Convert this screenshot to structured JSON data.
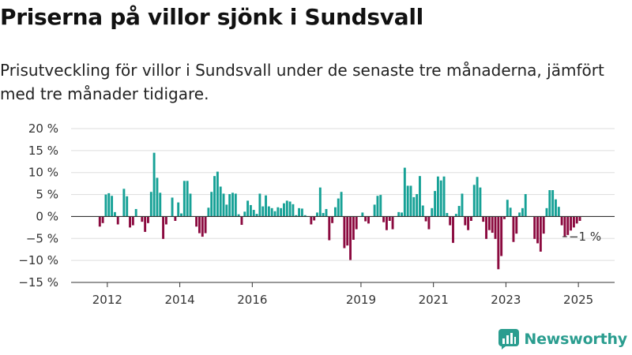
{
  "title": "Priserna på villor sjönk i Sundsvall",
  "subtitle": "Prisutveckling för villor i Sundsvall under de senaste tre månaderna, jämfört med tre månader tidigare.",
  "brand": {
    "name": "Newsworthy",
    "icon": "newsworthy-logo-icon"
  },
  "colors": {
    "positive": "#16a196",
    "negative": "#8b0a3f",
    "grid": "#dddddd",
    "zero_line": "#333333",
    "brand": "#2a9d8f"
  },
  "chart_data": {
    "type": "bar",
    "title": "Priserna på villor sjönk i Sundsvall",
    "xlabel": "",
    "ylabel": "",
    "x_unit": "month",
    "start": "2011-10",
    "end": "2025-03",
    "xlim": [
      "2011-01",
      "2025-12"
    ],
    "ylim": [
      -15,
      20
    ],
    "y_ticks": [
      20,
      15,
      10,
      5,
      0,
      -5,
      -10,
      -15
    ],
    "y_tick_labels": [
      "20 %",
      "15 %",
      "10 %",
      "5 %",
      "0 %",
      "−5 %",
      "−10 %",
      "−15 %"
    ],
    "x_ticks": [
      "2012",
      "2014",
      "2016",
      "2019",
      "2021",
      "2023",
      "2025"
    ],
    "grid": true,
    "legend": "none",
    "color_rule": "positive values teal, negative values crimson",
    "end_label": "−1 %",
    "values": [
      -2.3,
      -1.5,
      5.0,
      5.3,
      4.7,
      1.0,
      -1.8,
      0.0,
      6.3,
      4.6,
      -2.5,
      -2.0,
      1.7,
      0.0,
      -1.2,
      -3.5,
      -1.5,
      5.6,
      14.5,
      8.8,
      5.4,
      -5.1,
      -1.8,
      0.0,
      4.3,
      -1.0,
      3.2,
      0.7,
      8.1,
      8.1,
      5.2,
      0.0,
      -2.3,
      -3.8,
      -4.6,
      -3.8,
      2.0,
      5.6,
      9.2,
      10.2,
      6.8,
      5.2,
      2.7,
      5.1,
      5.4,
      5.2,
      0.5,
      -1.9,
      1.1,
      3.6,
      2.6,
      1.5,
      0.6,
      5.2,
      2.3,
      4.8,
      2.3,
      1.9,
      1.2,
      2.1,
      1.9,
      3.0,
      3.6,
      3.4,
      2.8,
      0.3,
      1.9,
      1.8,
      0.3,
      0.0,
      -1.8,
      -0.9,
      0.9,
      6.6,
      0.8,
      1.7,
      -5.4,
      -1.5,
      2.1,
      4.1,
      5.6,
      -7.2,
      -6.6,
      -9.9,
      -5.3,
      -2.9,
      0.0,
      0.9,
      -1.1,
      -1.6,
      0.0,
      2.7,
      4.7,
      4.9,
      -1.3,
      -3.1,
      -1.0,
      -2.9,
      0.0,
      1.0,
      0.9,
      11.1,
      7.0,
      7.0,
      4.4,
      5.1,
      9.2,
      2.5,
      -1.1,
      -2.9,
      1.9,
      5.8,
      9.1,
      8.2,
      9.1,
      0.8,
      -2.0,
      -6.0,
      0.6,
      2.4,
      5.2,
      -2.0,
      -3.1,
      -1.0,
      7.2,
      9.0,
      6.6,
      -1.2,
      -5.1,
      -3.1,
      -3.7,
      -5.1,
      -12.0,
      -9.0,
      -0.6,
      3.8,
      2.0,
      -5.8,
      -3.9,
      0.9,
      1.9,
      5.1,
      0.0,
      0.0,
      -5.1,
      -6.1,
      -8.0,
      -3.9,
      1.9,
      6.0,
      6.0,
      3.9,
      2.2,
      -2.0,
      -4.7,
      -4.2,
      -3.2,
      -2.5,
      -1.6,
      -1.0
    ]
  }
}
